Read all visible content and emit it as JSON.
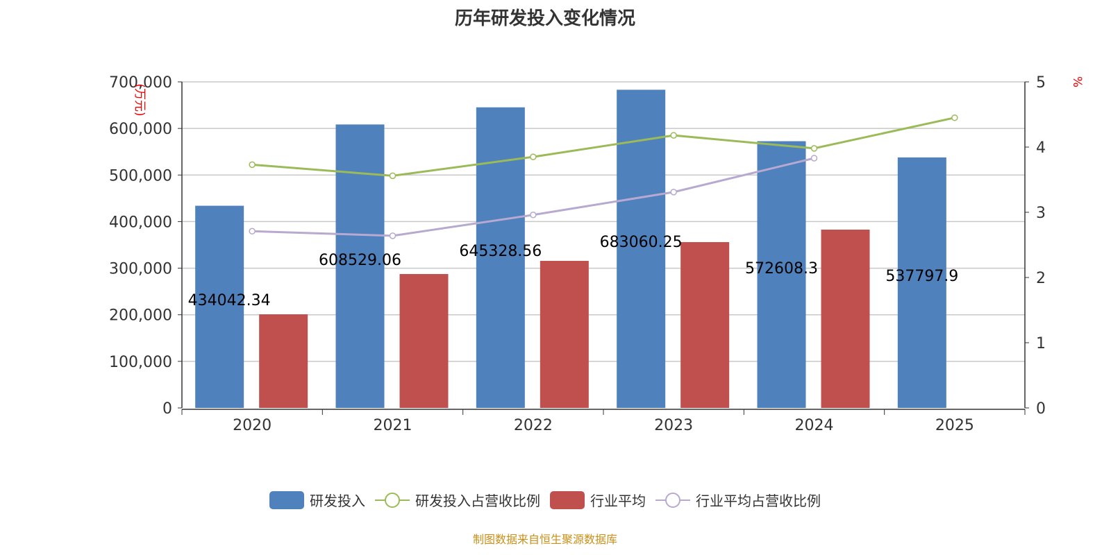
{
  "chart_data": {
    "type": "bar",
    "title": "历年研发投入变化情况",
    "categories": [
      "2020",
      "2021",
      "2022",
      "2023",
      "2024",
      "2025"
    ],
    "y_left": {
      "label": "(万元)",
      "range": [
        0,
        700000
      ],
      "ticks": [
        "0",
        "100,000",
        "200,000",
        "300,000",
        "400,000",
        "500,000",
        "600,000",
        "700,000"
      ]
    },
    "y_right": {
      "label": "%",
      "range": [
        0,
        5
      ],
      "ticks": [
        "0",
        "1",
        "2",
        "3",
        "4",
        "5"
      ]
    },
    "grid": true,
    "legend_position": "bottom",
    "series": [
      {
        "name": "研发投入",
        "type": "bar",
        "axis": "left",
        "color": "#4f81bd",
        "values": [
          434042.34,
          608529.06,
          645328.56,
          683060.25,
          572608.3,
          537797.9
        ],
        "labels": [
          "434042.34",
          "608529.06",
          "645328.56",
          "683060.25",
          "572608.3",
          "537797.9"
        ]
      },
      {
        "name": "研发投入占营收比例",
        "type": "line",
        "axis": "right",
        "color": "#9bbb59",
        "values": [
          3.73,
          3.56,
          3.85,
          4.18,
          3.98,
          4.45
        ]
      },
      {
        "name": "行业平均",
        "type": "bar",
        "axis": "left",
        "color": "#c0504d",
        "values": [
          201000,
          287500,
          315700,
          356000,
          382800,
          null
        ]
      },
      {
        "name": "行业平均占营收比例",
        "type": "line",
        "axis": "right",
        "color": "#b7a9cf",
        "values": [
          2.71,
          2.64,
          2.96,
          3.31,
          3.83,
          null
        ]
      }
    ]
  },
  "footer": "制图数据来自恒生聚源数据库"
}
